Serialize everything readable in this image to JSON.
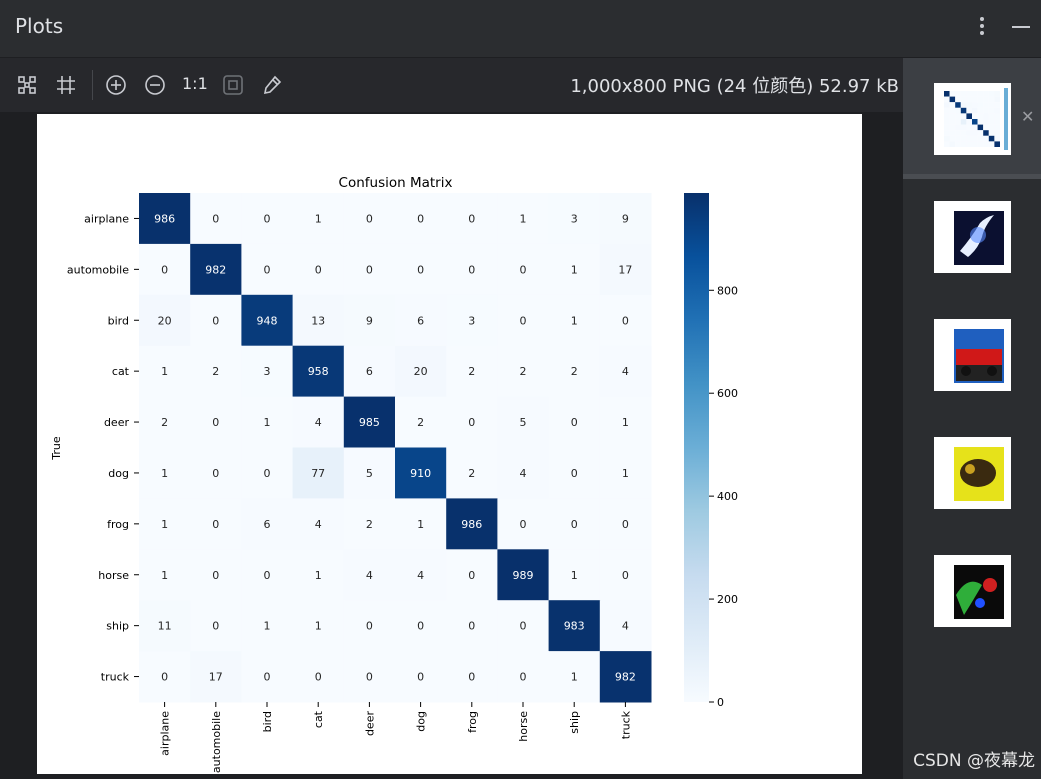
{
  "header": {
    "title": "Plots",
    "more_icon": "vertical-ellipsis-icon",
    "minimize_icon": "minimize-icon"
  },
  "toolbar": {
    "zoom_reset_label": "1:1",
    "image_info": "1,000x800 PNG (24 位颜色) 52.97 kB",
    "icons": [
      "fit-to-window-icon",
      "grid-icon",
      "zoom-in-icon",
      "zoom-out-icon",
      "actual-size-icon",
      "fit-frame-icon",
      "color-picker-icon"
    ]
  },
  "chart_data": {
    "type": "heatmap",
    "title": "Confusion Matrix",
    "ylabel": "True",
    "xlabel": "",
    "x_categories": [
      "airplane",
      "automobile",
      "bird",
      "cat",
      "deer",
      "dog",
      "frog",
      "horse",
      "ship",
      "truck"
    ],
    "y_categories": [
      "airplane",
      "automobile",
      "bird",
      "cat",
      "deer",
      "dog",
      "frog",
      "horse",
      "ship",
      "truck"
    ],
    "values": [
      [
        986,
        0,
        0,
        1,
        0,
        0,
        0,
        1,
        3,
        9
      ],
      [
        0,
        982,
        0,
        0,
        0,
        0,
        0,
        0,
        1,
        17
      ],
      [
        20,
        0,
        948,
        13,
        9,
        6,
        3,
        0,
        1,
        0
      ],
      [
        1,
        2,
        3,
        958,
        6,
        20,
        2,
        2,
        2,
        4
      ],
      [
        2,
        0,
        1,
        4,
        985,
        2,
        0,
        5,
        0,
        1
      ],
      [
        1,
        0,
        0,
        77,
        5,
        910,
        2,
        4,
        0,
        1
      ],
      [
        1,
        0,
        6,
        4,
        2,
        1,
        986,
        0,
        0,
        0
      ],
      [
        1,
        0,
        0,
        1,
        4,
        4,
        0,
        989,
        1,
        0
      ],
      [
        11,
        0,
        1,
        1,
        0,
        0,
        0,
        0,
        983,
        4
      ],
      [
        0,
        17,
        0,
        0,
        0,
        0,
        0,
        0,
        1,
        982
      ]
    ],
    "colorbar": {
      "ticks": [
        0,
        200,
        400,
        600,
        800
      ],
      "range": [
        0,
        989
      ],
      "colormap": "Blues"
    }
  },
  "thumbnails": [
    {
      "name": "confusion-matrix-thumbnail",
      "selected": true
    },
    {
      "name": "sample-prediction-thumbnail-1",
      "selected": false
    },
    {
      "name": "sample-prediction-thumbnail-2",
      "selected": false
    },
    {
      "name": "sample-prediction-thumbnail-3",
      "selected": false
    },
    {
      "name": "sample-prediction-thumbnail-4",
      "selected": false
    }
  ],
  "watermark": "CSDN @夜幕龙",
  "colors": {
    "panel_bg": "#2b2d30",
    "canvas_bg": "#1e1f22",
    "heat_low": "#f7fbff",
    "heat_high": "#08306b"
  }
}
